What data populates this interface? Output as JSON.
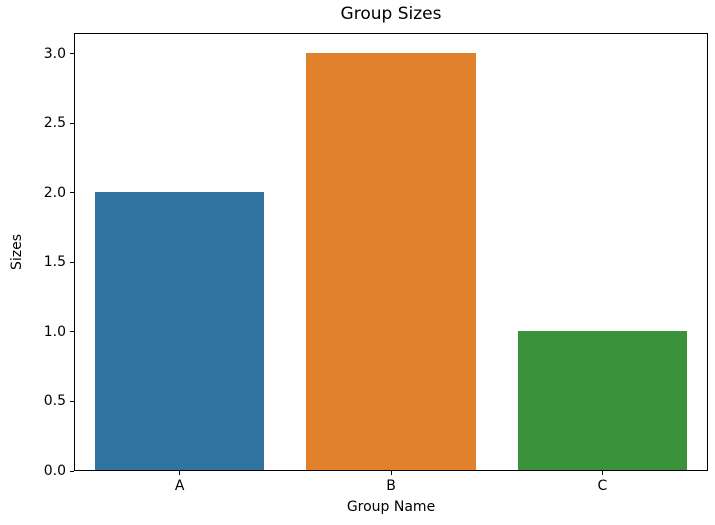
{
  "figure": {
    "background_color": "#ffffff",
    "text_color": "#000000",
    "spine_color": "#000000"
  },
  "chart_data": {
    "type": "bar",
    "title": "Group Sizes",
    "xlabel": "Group Name",
    "ylabel": "Sizes",
    "categories": [
      "A",
      "B",
      "C"
    ],
    "values": [
      2.0,
      3.0,
      1.0
    ],
    "bar_colors": [
      "#3274a1",
      "#e1812c",
      "#3a923a"
    ],
    "bar_width": 0.8,
    "ylim": [
      0,
      3.15
    ],
    "yticks": [
      0.0,
      0.5,
      1.0,
      1.5,
      2.0,
      2.5,
      3.0
    ],
    "ytick_labels": [
      "0.0",
      "0.5",
      "1.0",
      "1.5",
      "2.0",
      "2.5",
      "3.0"
    ],
    "grid": false,
    "legend_position": "none"
  }
}
